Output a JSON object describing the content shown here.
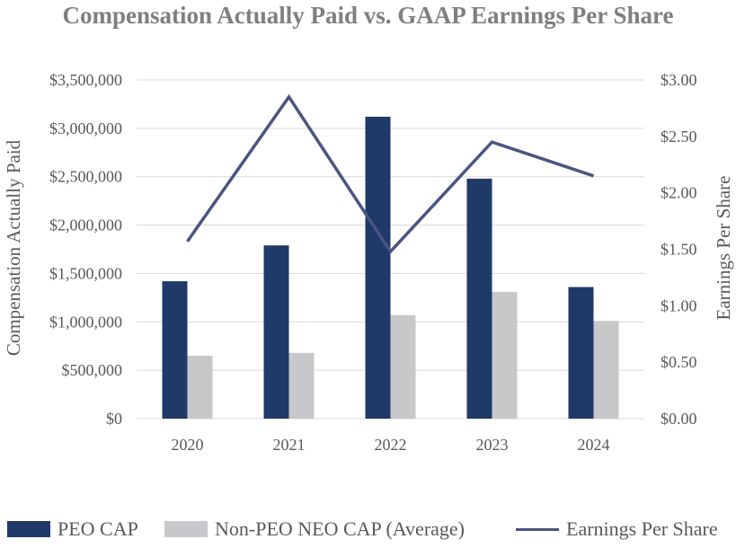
{
  "chart_data": {
    "type": "bar",
    "title": "Compensation Actually Paid vs. GAAP Earnings Per Share",
    "categories": [
      "2020",
      "2021",
      "2022",
      "2023",
      "2024"
    ],
    "series": [
      {
        "name": "PEO CAP",
        "kind": "bar",
        "axis": "left",
        "color": "#1f3a68",
        "values": [
          1420000,
          1790000,
          3120000,
          2480000,
          1360000
        ]
      },
      {
        "name": "Non-PEO NEO CAP (Average)",
        "kind": "bar",
        "axis": "left",
        "color": "#c8c8ca",
        "values": [
          650000,
          680000,
          1070000,
          1310000,
          1010000
        ]
      },
      {
        "name": "Earnings Per Share",
        "kind": "line",
        "axis": "right",
        "color": "#4a5580",
        "values": [
          1.57,
          2.85,
          1.48,
          2.45,
          2.15
        ]
      }
    ],
    "ylabel_left": "Compensation Actually Paid",
    "ylabel_right": "Earnings Per Share",
    "ylim_left": [
      0,
      3500000
    ],
    "ylim_right": [
      0,
      3.0
    ],
    "yticks_left": [
      "$0",
      "$500,000",
      "$1,000,000",
      "$1,500,000",
      "$2,000,000",
      "$2,500,000",
      "$3,000,000",
      "$3,500,000"
    ],
    "yticks_right": [
      "$0.00",
      "$0.50",
      "$1.00",
      "$1.50",
      "$2.00",
      "$2.50",
      "$3.00"
    ],
    "grid": true,
    "legend_position": "bottom"
  }
}
